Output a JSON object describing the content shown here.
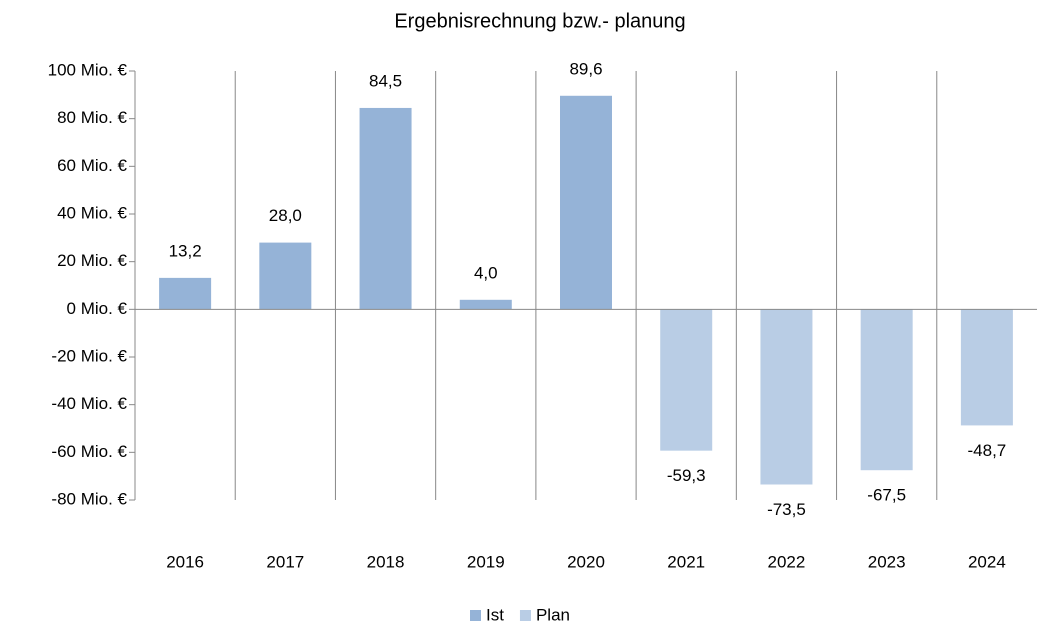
{
  "chart_data": {
    "type": "bar",
    "title": "Ergebnisrechnung bzw.- planung",
    "categories": [
      "2016",
      "2017",
      "2018",
      "2019",
      "2020",
      "2021",
      "2022",
      "2023",
      "2024"
    ],
    "series": [
      {
        "name": "Ist",
        "color": "#95b3d7",
        "values": [
          13.2,
          28.0,
          84.5,
          4.0,
          89.6,
          null,
          null,
          null,
          null
        ],
        "value_labels": [
          "13,2",
          "28,0",
          "84,5",
          "4,0",
          "89,6",
          null,
          null,
          null,
          null
        ]
      },
      {
        "name": "Plan",
        "color": "#b9cde5",
        "values": [
          null,
          null,
          null,
          null,
          null,
          -59.3,
          -73.5,
          -67.5,
          -48.7
        ],
        "value_labels": [
          null,
          null,
          null,
          null,
          null,
          "-59,3",
          "-73,5",
          "-67,5",
          "-48,7"
        ]
      }
    ],
    "ylim": [
      -80,
      100
    ],
    "yticks": [
      {
        "value": -80,
        "label": "-80 Mio. €"
      },
      {
        "value": -60,
        "label": "-60 Mio. €"
      },
      {
        "value": -40,
        "label": "-40 Mio. €"
      },
      {
        "value": -20,
        "label": "-20 Mio. €"
      },
      {
        "value": 0,
        "label": "0 Mio. €"
      },
      {
        "value": 20,
        "label": "20 Mio. €"
      },
      {
        "value": 40,
        "label": "40 Mio. €"
      },
      {
        "value": 60,
        "label": "60 Mio. €"
      },
      {
        "value": 80,
        "label": "80 Mio. €"
      },
      {
        "value": 100,
        "label": "100 Mio. €"
      }
    ],
    "legend": "bottom"
  }
}
